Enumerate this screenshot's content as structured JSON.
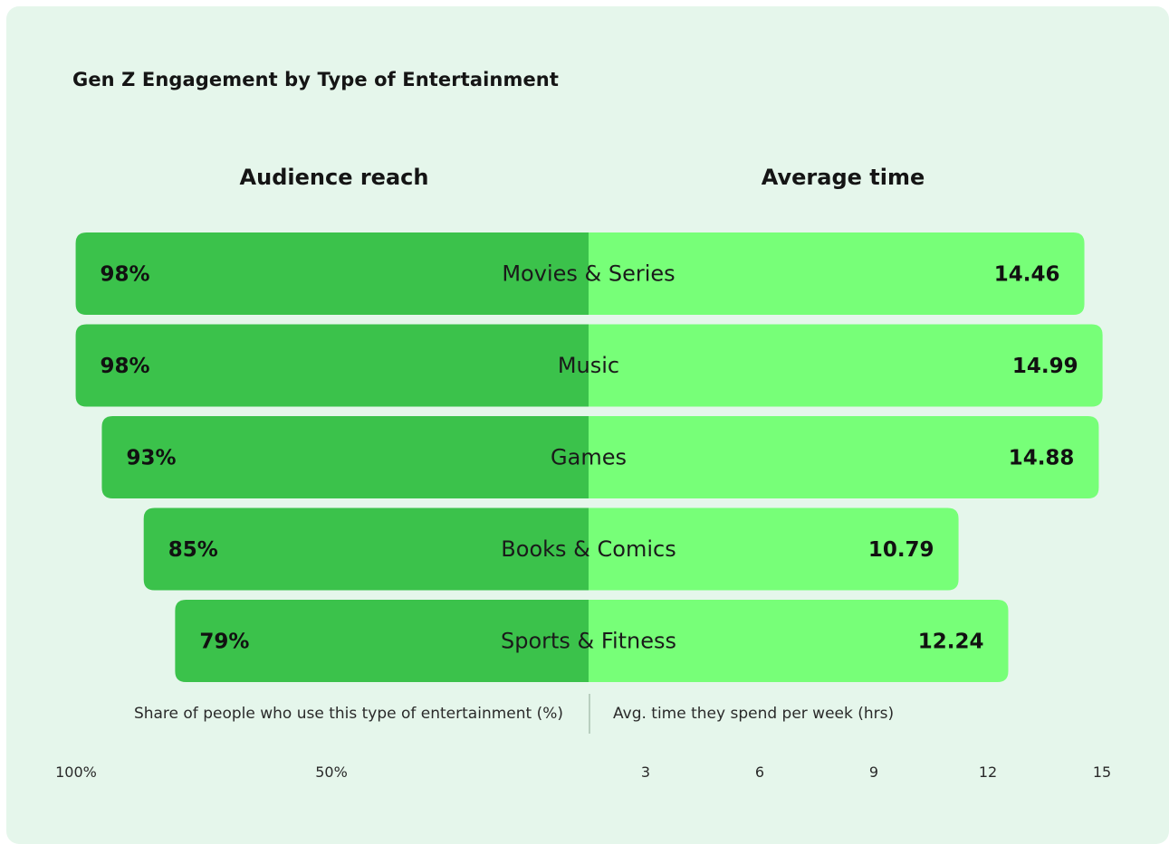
{
  "chart_data": {
    "type": "bar",
    "layout": "diverging-butterfly",
    "title": "Gen Z Engagement by Type of Entertainment",
    "categories": [
      "Movies & Series",
      "Music",
      "Games",
      "Books & Comics",
      "Sports & Fitness"
    ],
    "series": [
      {
        "name": "Audience reach",
        "axis_label": "Share of people who use this type of entertainment (%)",
        "values": [
          98,
          98,
          93,
          85,
          79
        ],
        "value_labels": [
          "98%",
          "98%",
          "93%",
          "85%",
          "79%"
        ],
        "range": [
          0,
          100
        ],
        "ticks": [
          "100%",
          "50%"
        ],
        "tick_values": [
          100,
          50
        ],
        "color": "#3bc24b",
        "side": "left"
      },
      {
        "name": "Average time",
        "axis_label": "Avg. time they spend per week (hrs)",
        "values": [
          14.46,
          14.99,
          14.88,
          10.79,
          12.24
        ],
        "value_labels": [
          "14.46",
          "14.99",
          "14.88",
          "10.79",
          "12.24"
        ],
        "range": [
          0,
          15
        ],
        "ticks": [
          "3",
          "6",
          "9",
          "12",
          "15"
        ],
        "tick_values": [
          3,
          6,
          9,
          12,
          15
        ],
        "color": "#77ff78",
        "side": "right"
      }
    ],
    "background": "#e5f6eb",
    "grid": false
  }
}
